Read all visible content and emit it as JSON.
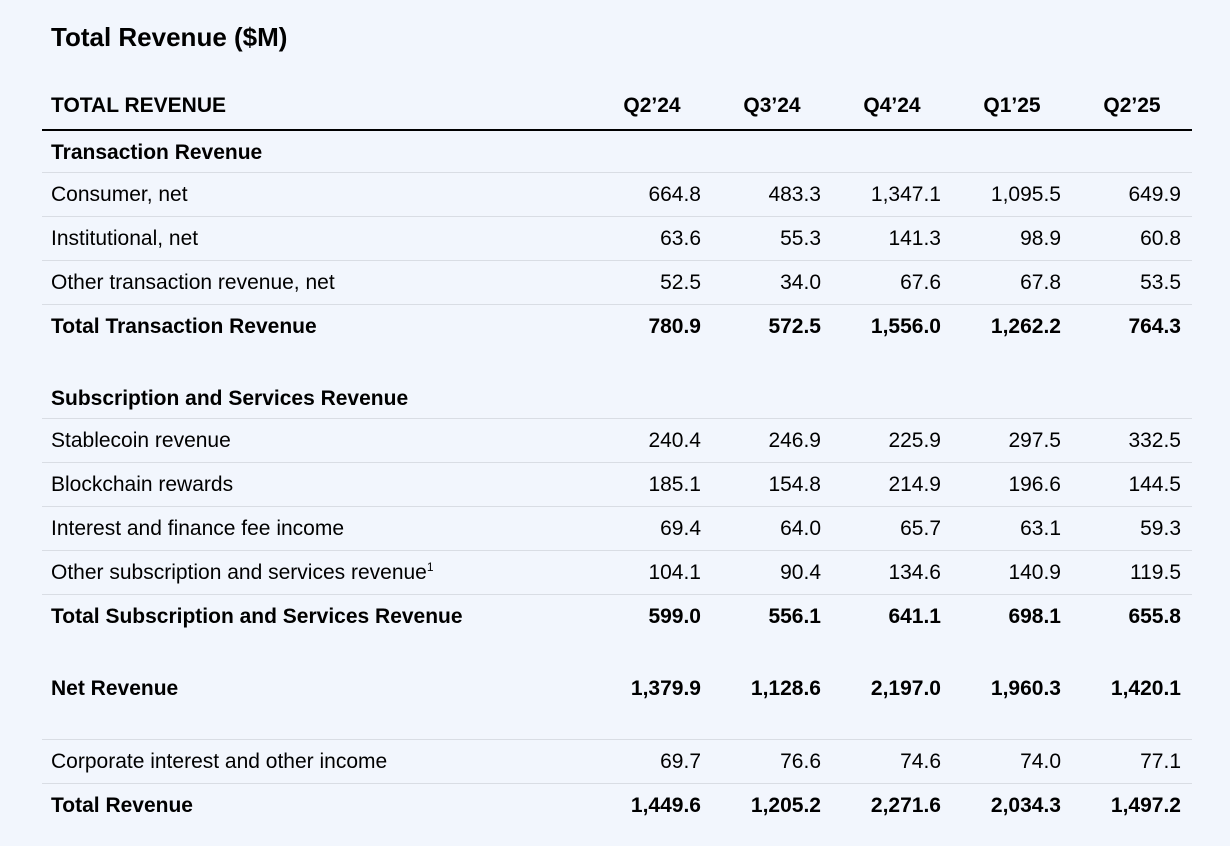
{
  "title": "Total Revenue ($M)",
  "header": {
    "label": "TOTAL REVENUE",
    "quarters": [
      "Q2’24",
      "Q3’24",
      "Q4’24",
      "Q1’25",
      "Q2’25"
    ]
  },
  "transaction": {
    "section_label": "Transaction Revenue",
    "rows": [
      {
        "label": "Consumer, net",
        "values": [
          "664.8",
          "483.3",
          "1,347.1",
          "1,095.5",
          "649.9"
        ]
      },
      {
        "label": "Institutional, net",
        "values": [
          "63.6",
          "55.3",
          "141.3",
          "98.9",
          "60.8"
        ]
      },
      {
        "label": "Other transaction revenue, net",
        "values": [
          "52.5",
          "34.0",
          "67.6",
          "67.8",
          "53.5"
        ]
      }
    ],
    "total": {
      "label": "Total Transaction Revenue",
      "values": [
        "780.9",
        "572.5",
        "1,556.0",
        "1,262.2",
        "764.3"
      ]
    }
  },
  "subscription": {
    "section_label": "Subscription and Services Revenue",
    "rows": [
      {
        "label": "Stablecoin revenue",
        "values": [
          "240.4",
          "246.9",
          "225.9",
          "297.5",
          "332.5"
        ]
      },
      {
        "label": "Blockchain rewards",
        "values": [
          "185.1",
          "154.8",
          "214.9",
          "196.6",
          "144.5"
        ]
      },
      {
        "label": "Interest and finance fee income",
        "values": [
          "69.4",
          "64.0",
          "65.7",
          "63.1",
          "59.3"
        ]
      },
      {
        "label": "Other subscription and services revenue",
        "footnote": "1",
        "values": [
          "104.1",
          "90.4",
          "134.6",
          "140.9",
          "119.5"
        ]
      }
    ],
    "total": {
      "label": "Total Subscription and Services Revenue",
      "values": [
        "599.0",
        "556.1",
        "641.1",
        "698.1",
        "655.8"
      ]
    }
  },
  "net_revenue": {
    "label": "Net Revenue",
    "values": [
      "1,379.9",
      "1,128.6",
      "2,197.0",
      "1,960.3",
      "1,420.1"
    ]
  },
  "corporate": {
    "label": "Corporate interest and other income",
    "values": [
      "69.7",
      "76.6",
      "74.6",
      "74.0",
      "77.1"
    ]
  },
  "total_revenue": {
    "label": "Total Revenue",
    "values": [
      "1,449.6",
      "1,205.2",
      "2,271.6",
      "2,034.3",
      "1,497.2"
    ]
  }
}
